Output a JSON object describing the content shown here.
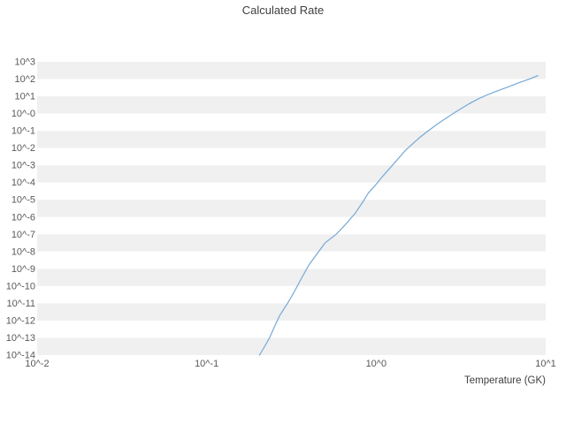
{
  "chart_data": {
    "type": "line",
    "title": "Calculated Rate",
    "xlabel": "Temperature (GK)",
    "ylabel": "",
    "x_scale": "log",
    "y_scale": "log",
    "x_log_range": [
      -2,
      1
    ],
    "y_log_range": [
      -14,
      3
    ],
    "grid": "striped-horizontal-bands",
    "legend": "none",
    "band_colors": [
      "#f0f0f0",
      "#ffffff"
    ],
    "x_ticks": [
      {
        "log": -2,
        "label": "10^-2"
      },
      {
        "log": -1,
        "label": "10^-1"
      },
      {
        "log": 0,
        "label": "10^0"
      },
      {
        "log": 1,
        "label": "10^1"
      }
    ],
    "y_ticks": [
      {
        "log": 3,
        "label": "10^3"
      },
      {
        "log": 2,
        "label": "10^2"
      },
      {
        "log": 1,
        "label": "10^1"
      },
      {
        "log": 0,
        "label": "10^-0"
      },
      {
        "log": -1,
        "label": "10^-1"
      },
      {
        "log": -2,
        "label": "10^-2"
      },
      {
        "log": -3,
        "label": "10^-3"
      },
      {
        "log": -4,
        "label": "10^-4"
      },
      {
        "log": -5,
        "label": "10^-5"
      },
      {
        "log": -6,
        "label": "10^-6"
      },
      {
        "log": -7,
        "label": "10^-7"
      },
      {
        "log": -8,
        "label": "10^-8"
      },
      {
        "log": -9,
        "label": "10^-9"
      },
      {
        "log": -10,
        "label": "10^-10"
      },
      {
        "log": -11,
        "label": "10^-11"
      },
      {
        "log": -12,
        "label": "10^-12"
      },
      {
        "log": -13,
        "label": "10^-13"
      },
      {
        "log": -14,
        "label": "10^-14"
      }
    ],
    "series": [
      {
        "name": "Calculated Rate",
        "color": "#76a9d6",
        "points": [
          [
            0.205,
            1e-14
          ],
          [
            0.22,
            3.2e-14
          ],
          [
            0.235,
            1e-13
          ],
          [
            0.25,
            4e-13
          ],
          [
            0.27,
            2e-12
          ],
          [
            0.3,
            1e-11
          ],
          [
            0.33,
            5e-11
          ],
          [
            0.36,
            2.5e-10
          ],
          [
            0.4,
            1.6e-09
          ],
          [
            0.45,
            8e-09
          ],
          [
            0.5,
            3.2e-08
          ],
          [
            0.58,
            1e-07
          ],
          [
            0.65,
            3.2e-07
          ],
          [
            0.75,
            1.6e-06
          ],
          [
            0.85,
            1e-05
          ],
          [
            0.9,
            2.5e-05
          ],
          [
            1.0,
            8e-05
          ],
          [
            1.1,
            0.00025
          ],
          [
            1.3,
            0.0016
          ],
          [
            1.5,
            0.008
          ],
          [
            1.8,
            0.04
          ],
          [
            2.0,
            0.09
          ],
          [
            2.3,
            0.25
          ],
          [
            2.6,
            0.56
          ],
          [
            3.0,
            1.4
          ],
          [
            3.5,
            3.5
          ],
          [
            4.0,
            7.1
          ],
          [
            4.5,
            12
          ],
          [
            5.0,
            18
          ],
          [
            6.0,
            35
          ],
          [
            7.0,
            63
          ],
          [
            8.0,
            100
          ],
          [
            9.0,
            160
          ]
        ]
      }
    ]
  }
}
